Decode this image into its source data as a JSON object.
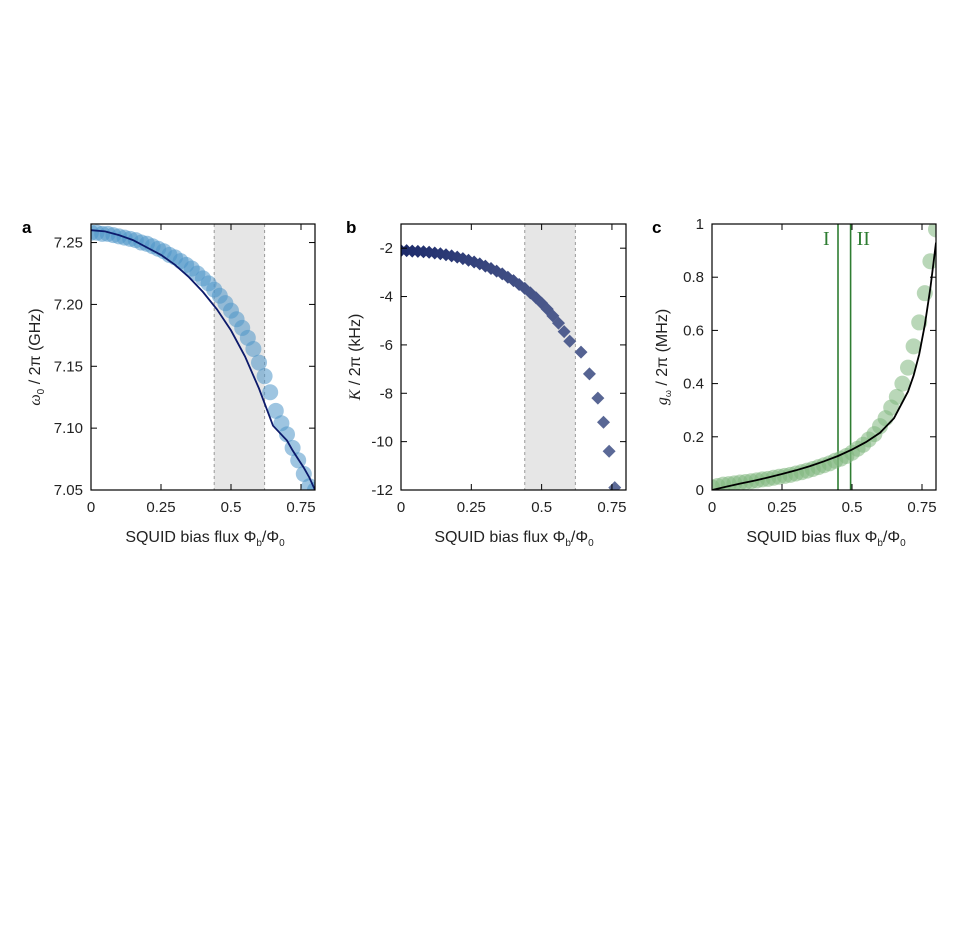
{
  "chart_data": [
    {
      "panel": "a",
      "type": "scatter",
      "xlabel": "SQUID bias flux",
      "ylabel_unit": "(GHz)",
      "xlim": [
        0,
        0.8
      ],
      "ylim": [
        7.05,
        7.265
      ],
      "xticks": [
        "0",
        "0.25",
        "0.5",
        "0.75"
      ],
      "yticks": [
        "7.05",
        "7.10",
        "7.15",
        "7.20",
        "7.25"
      ],
      "shaded_x_range": [
        0.44,
        0.62
      ],
      "marker_color": "#4f95c9",
      "line_color": "#0c1a6b",
      "x": [
        0.0,
        0.02,
        0.04,
        0.06,
        0.08,
        0.1,
        0.12,
        0.14,
        0.16,
        0.18,
        0.2,
        0.22,
        0.24,
        0.26,
        0.28,
        0.3,
        0.32,
        0.34,
        0.36,
        0.38,
        0.4,
        0.42,
        0.44,
        0.46,
        0.48,
        0.5,
        0.52,
        0.54,
        0.56,
        0.58,
        0.6,
        0.62,
        0.64,
        0.66,
        0.68,
        0.7,
        0.72,
        0.74,
        0.76,
        0.78,
        0.8
      ],
      "y": [
        7.258,
        7.258,
        7.257,
        7.257,
        7.256,
        7.255,
        7.254,
        7.253,
        7.252,
        7.25,
        7.249,
        7.247,
        7.245,
        7.243,
        7.24,
        7.238,
        7.235,
        7.232,
        7.229,
        7.225,
        7.221,
        7.217,
        7.212,
        7.207,
        7.201,
        7.195,
        7.188,
        7.181,
        7.173,
        7.164,
        7.153,
        7.142,
        7.129,
        7.114,
        7.104,
        7.095,
        7.084,
        7.074,
        7.063,
        7.053,
        7.05
      ],
      "fit": {
        "x": [
          0.0,
          0.05,
          0.1,
          0.15,
          0.2,
          0.25,
          0.3,
          0.35,
          0.4,
          0.45,
          0.5,
          0.55,
          0.6,
          0.65,
          0.7,
          0.72,
          0.74,
          0.76,
          0.78,
          0.8
        ],
        "y": [
          7.26,
          7.259,
          7.256,
          7.252,
          7.246,
          7.24,
          7.232,
          7.222,
          7.21,
          7.196,
          7.179,
          7.158,
          7.132,
          7.102,
          7.09,
          7.082,
          7.075,
          7.068,
          7.06,
          7.05
        ]
      }
    },
    {
      "panel": "b",
      "type": "scatter",
      "xlabel": "SQUID bias flux",
      "ylabel_unit": "(kHz)",
      "xlim": [
        0,
        0.8
      ],
      "ylim": [
        -12,
        -1
      ],
      "xticks": [
        "0",
        "0.25",
        "0.5",
        "0.75"
      ],
      "yticks": [
        "-12",
        "-10",
        "-8",
        "-6",
        "-4",
        "-2"
      ],
      "shaded_x_range": [
        0.44,
        0.62
      ],
      "marker_color_start": "#1c2a6a",
      "marker_color_end": "#5d6b98",
      "x": [
        0.0,
        0.02,
        0.04,
        0.06,
        0.08,
        0.1,
        0.12,
        0.14,
        0.16,
        0.18,
        0.2,
        0.22,
        0.24,
        0.26,
        0.28,
        0.3,
        0.32,
        0.34,
        0.36,
        0.38,
        0.4,
        0.42,
        0.44,
        0.46,
        0.48,
        0.5,
        0.52,
        0.54,
        0.56,
        0.58,
        0.6,
        0.64,
        0.67,
        0.7,
        0.72,
        0.74,
        0.76
      ],
      "y": [
        -2.1,
        -2.1,
        -2.12,
        -2.13,
        -2.15,
        -2.17,
        -2.2,
        -2.23,
        -2.27,
        -2.32,
        -2.37,
        -2.43,
        -2.5,
        -2.57,
        -2.65,
        -2.74,
        -2.84,
        -2.95,
        -3.06,
        -3.2,
        -3.34,
        -3.5,
        -3.66,
        -3.85,
        -4.05,
        -4.27,
        -4.52,
        -4.8,
        -5.1,
        -5.45,
        -5.85,
        -6.3,
        -7.2,
        -8.2,
        -9.2,
        -10.4,
        -11.9
      ]
    },
    {
      "panel": "c",
      "type": "scatter",
      "xlabel": "SQUID bias flux",
      "ylabel_unit": "(MHz)",
      "xlim": [
        0,
        0.8
      ],
      "ylim": [
        0,
        1
      ],
      "xticks": [
        "0",
        "0.25",
        "0.5",
        "0.75"
      ],
      "yticks": [
        "0",
        "0.2",
        "0.4",
        "0.6",
        "0.8",
        "1"
      ],
      "marker_color": "#7fb77e",
      "line_color": "#000000",
      "vlines": [
        0.45,
        0.495
      ],
      "region_labels": [
        "I",
        "II"
      ],
      "x": [
        0.0,
        0.02,
        0.04,
        0.06,
        0.08,
        0.1,
        0.12,
        0.14,
        0.16,
        0.18,
        0.2,
        0.22,
        0.24,
        0.26,
        0.28,
        0.3,
        0.32,
        0.34,
        0.36,
        0.38,
        0.4,
        0.42,
        0.44,
        0.46,
        0.48,
        0.5,
        0.52,
        0.54,
        0.56,
        0.58,
        0.6,
        0.62,
        0.64,
        0.66,
        0.68,
        0.7,
        0.72,
        0.74,
        0.76,
        0.78,
        0.8
      ],
      "y": [
        0.01,
        0.015,
        0.02,
        0.022,
        0.025,
        0.028,
        0.03,
        0.033,
        0.036,
        0.04,
        0.042,
        0.046,
        0.05,
        0.053,
        0.057,
        0.062,
        0.067,
        0.073,
        0.079,
        0.086,
        0.093,
        0.1,
        0.11,
        0.118,
        0.128,
        0.14,
        0.155,
        0.17,
        0.19,
        0.21,
        0.24,
        0.27,
        0.31,
        0.35,
        0.4,
        0.46,
        0.54,
        0.63,
        0.74,
        0.86,
        0.98
      ],
      "fit": {
        "x": [
          0.0,
          0.05,
          0.1,
          0.15,
          0.2,
          0.25,
          0.3,
          0.35,
          0.4,
          0.45,
          0.5,
          0.55,
          0.6,
          0.65,
          0.7,
          0.72,
          0.74,
          0.76,
          0.78,
          0.8
        ],
        "y": [
          0.0,
          0.012,
          0.024,
          0.035,
          0.047,
          0.06,
          0.074,
          0.09,
          0.108,
          0.128,
          0.152,
          0.18,
          0.215,
          0.27,
          0.37,
          0.43,
          0.51,
          0.62,
          0.76,
          0.93
        ]
      }
    }
  ],
  "labels": {
    "panel_a": "a",
    "panel_b": "b",
    "panel_c": "c",
    "region_I": "I",
    "region_II": "II",
    "x_text": "SQUID bias flux Φ",
    "x_sub1": "b",
    "x_slash": "/Φ",
    "x_sub2": "0",
    "ya_omega": "ω",
    "ya_sub": "0",
    "ya_rest": " / 2π (GHz)",
    "yb_kappa": "K",
    "yb_rest": " / 2π (kHz)",
    "yc_g": "g",
    "yc_sub": "ω",
    "yc_rest": " / 2π (MHz)"
  }
}
